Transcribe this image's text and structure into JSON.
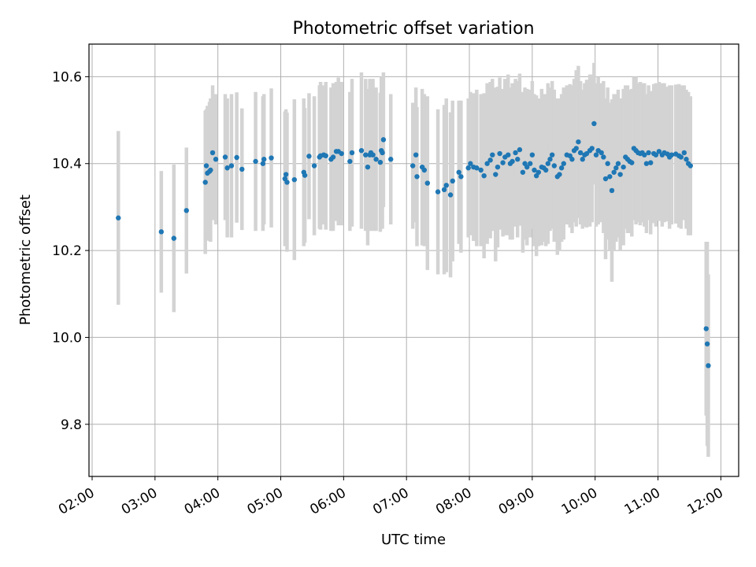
{
  "chart_data": {
    "type": "scatter",
    "title": "Photometric offset variation",
    "xlabel": "UTC time",
    "ylabel": "Photometric offset",
    "xlim": [
      "01:57",
      "12:17"
    ],
    "ylim": [
      9.68,
      10.675
    ],
    "xticks": [
      "02:00",
      "03:00",
      "04:00",
      "05:00",
      "06:00",
      "07:00",
      "08:00",
      "09:00",
      "10:00",
      "11:00",
      "12:00"
    ],
    "yticks": [
      "9.8",
      "10.0",
      "10.2",
      "10.4",
      "10.6"
    ],
    "grid": true,
    "colors": {
      "points": "#1f77b4",
      "errorbars": "#d3d3d3",
      "grid": "#b0b0b0"
    },
    "series": [
      {
        "x": [
          "02:25",
          "03:06",
          "03:18",
          "03:30",
          "03:48",
          "03:49",
          "03:50",
          "03:52",
          "03:53",
          "03:55",
          "03:58",
          "04:07",
          "04:09",
          "04:13",
          "04:18",
          "04:23",
          "04:36",
          "04:43",
          "04:44",
          "04:51",
          "05:04",
          "05:05",
          "05:06",
          "05:13",
          "05:22",
          "05:23",
          "05:27",
          "05:32",
          "05:37",
          "05:38",
          "05:41",
          "05:43",
          "05:48",
          "05:50",
          "05:53",
          "05:55",
          "05:58",
          "06:06",
          "06:08",
          "06:17",
          "06:21",
          "06:23",
          "06:25",
          "06:26",
          "06:28",
          "06:31",
          "06:35",
          "06:36",
          "06:37",
          "06:38",
          "06:45",
          "07:06",
          "07:09",
          "07:10",
          "07:15",
          "07:17",
          "07:20",
          "07:30",
          "07:36",
          "07:38",
          "07:42",
          "07:44",
          "07:50",
          "07:52",
          "07:59",
          "08:01",
          "08:04",
          "08:07",
          "08:11",
          "08:14",
          "08:17",
          "08:20",
          "08:22",
          "08:25",
          "08:27",
          "08:29",
          "08:32",
          "08:34",
          "08:37",
          "08:39",
          "08:41",
          "08:44",
          "08:46",
          "08:48",
          "08:51",
          "08:53",
          "08:55",
          "08:58",
          "09:00",
          "09:02",
          "09:04",
          "09:06",
          "09:09",
          "09:11",
          "09:13",
          "09:15",
          "09:17",
          "09:19",
          "09:21",
          "09:24",
          "09:26",
          "09:28",
          "09:30",
          "09:33",
          "09:36",
          "09:38",
          "09:40",
          "09:42",
          "09:44",
          "09:46",
          "09:48",
          "09:50",
          "09:52",
          "09:55",
          "09:57",
          "09:59",
          "10:01",
          "10:03",
          "10:06",
          "10:08",
          "10:10",
          "10:12",
          "10:14",
          "10:16",
          "10:18",
          "10:20",
          "10:22",
          "10:24",
          "10:27",
          "10:29",
          "10:31",
          "10:33",
          "10:35",
          "10:37",
          "10:39",
          "10:41",
          "10:43",
          "10:45",
          "10:47",
          "10:49",
          "10:51",
          "10:53",
          "10:56",
          "10:58",
          "11:01",
          "11:04",
          "11:06",
          "11:09",
          "11:11",
          "11:13",
          "11:17",
          "11:20",
          "11:22",
          "11:25",
          "11:27",
          "11:29",
          "11:31",
          "11:46",
          "11:47",
          "11:48"
        ],
        "y": [
          10.275,
          10.243,
          10.228,
          10.292,
          10.357,
          10.395,
          10.378,
          10.382,
          10.385,
          10.425,
          10.41,
          10.415,
          10.39,
          10.395,
          10.414,
          10.387,
          10.405,
          10.4,
          10.41,
          10.413,
          10.365,
          10.375,
          10.357,
          10.363,
          10.38,
          10.373,
          10.417,
          10.395,
          10.415,
          10.418,
          10.42,
          10.418,
          10.41,
          10.415,
          10.428,
          10.428,
          10.423,
          10.405,
          10.425,
          10.43,
          10.42,
          10.392,
          10.42,
          10.425,
          10.42,
          10.41,
          10.403,
          10.43,
          10.425,
          10.455,
          10.41,
          10.395,
          10.42,
          10.37,
          10.392,
          10.385,
          10.355,
          10.335,
          10.34,
          10.35,
          10.328,
          10.36,
          10.38,
          10.37,
          10.39,
          10.4,
          10.392,
          10.39,
          10.385,
          10.372,
          10.4,
          10.408,
          10.42,
          10.375,
          10.392,
          10.423,
          10.402,
          10.415,
          10.42,
          10.4,
          10.405,
          10.425,
          10.41,
          10.432,
          10.38,
          10.4,
          10.392,
          10.4,
          10.42,
          10.385,
          10.372,
          10.38,
          10.392,
          10.39,
          10.385,
          10.4,
          10.41,
          10.42,
          10.395,
          10.37,
          10.375,
          10.39,
          10.4,
          10.42,
          10.418,
          10.41,
          10.43,
          10.435,
          10.45,
          10.425,
          10.41,
          10.42,
          10.423,
          10.43,
          10.435,
          10.492,
          10.42,
          10.43,
          10.425,
          10.415,
          10.365,
          10.4,
          10.37,
          10.338,
          10.38,
          10.39,
          10.4,
          10.375,
          10.392,
          10.415,
          10.41,
          10.405,
          10.402,
          10.435,
          10.43,
          10.425,
          10.423,
          10.425,
          10.42,
          10.4,
          10.425,
          10.402,
          10.423,
          10.42,
          10.428,
          10.42,
          10.425,
          10.422,
          10.415,
          10.42,
          10.422,
          10.418,
          10.415,
          10.425,
          10.41,
          10.4,
          10.395,
          10.02,
          9.985,
          9.935
        ],
        "err": [
          0.2,
          0.14,
          0.17,
          0.145,
          0.165,
          0.13,
          0.155,
          0.16,
          0.165,
          0.155,
          0.15,
          0.145,
          0.16,
          0.165,
          0.15,
          0.14,
          0.16,
          0.155,
          0.15,
          0.16,
          0.155,
          0.15,
          0.16,
          0.185,
          0.17,
          0.155,
          0.145,
          0.16,
          0.165,
          0.17,
          0.16,
          0.17,
          0.165,
          0.17,
          0.16,
          0.17,
          0.165,
          0.16,
          0.17,
          0.18,
          0.175,
          0.18,
          0.175,
          0.16,
          0.175,
          0.165,
          0.16,
          0.17,
          0.175,
          0.155,
          0.15,
          0.145,
          0.155,
          0.16,
          0.18,
          0.175,
          0.2,
          0.19,
          0.195,
          0.2,
          0.19,
          0.185,
          0.165,
          0.175,
          0.16,
          0.165,
          0.17,
          0.18,
          0.175,
          0.19,
          0.185,
          0.18,
          0.175,
          0.2,
          0.185,
          0.175,
          0.17,
          0.18,
          0.185,
          0.175,
          0.18,
          0.17,
          0.18,
          0.175,
          0.185,
          0.175,
          0.18,
          0.17,
          0.17,
          0.175,
          0.185,
          0.17,
          0.18,
          0.17,
          0.175,
          0.185,
          0.165,
          0.17,
          0.175,
          0.18,
          0.175,
          0.17,
          0.175,
          0.16,
          0.165,
          0.17,
          0.165,
          0.18,
          0.175,
          0.165,
          0.16,
          0.165,
          0.17,
          0.175,
          0.17,
          0.14,
          0.165,
          0.17,
          0.16,
          0.175,
          0.185,
          0.175,
          0.17,
          0.21,
          0.18,
          0.17,
          0.17,
          0.175,
          0.18,
          0.165,
          0.17,
          0.165,
          0.17,
          0.165,
          0.17,
          0.16,
          0.165,
          0.16,
          0.165,
          0.16,
          0.155,
          0.165,
          0.16,
          0.165,
          0.16,
          0.165,
          0.16,
          0.155,
          0.165,
          0.16,
          0.16,
          0.165,
          0.165,
          0.155,
          0.16,
          0.165,
          0.16,
          0.2,
          0.235,
          0.21
        ]
      }
    ]
  }
}
